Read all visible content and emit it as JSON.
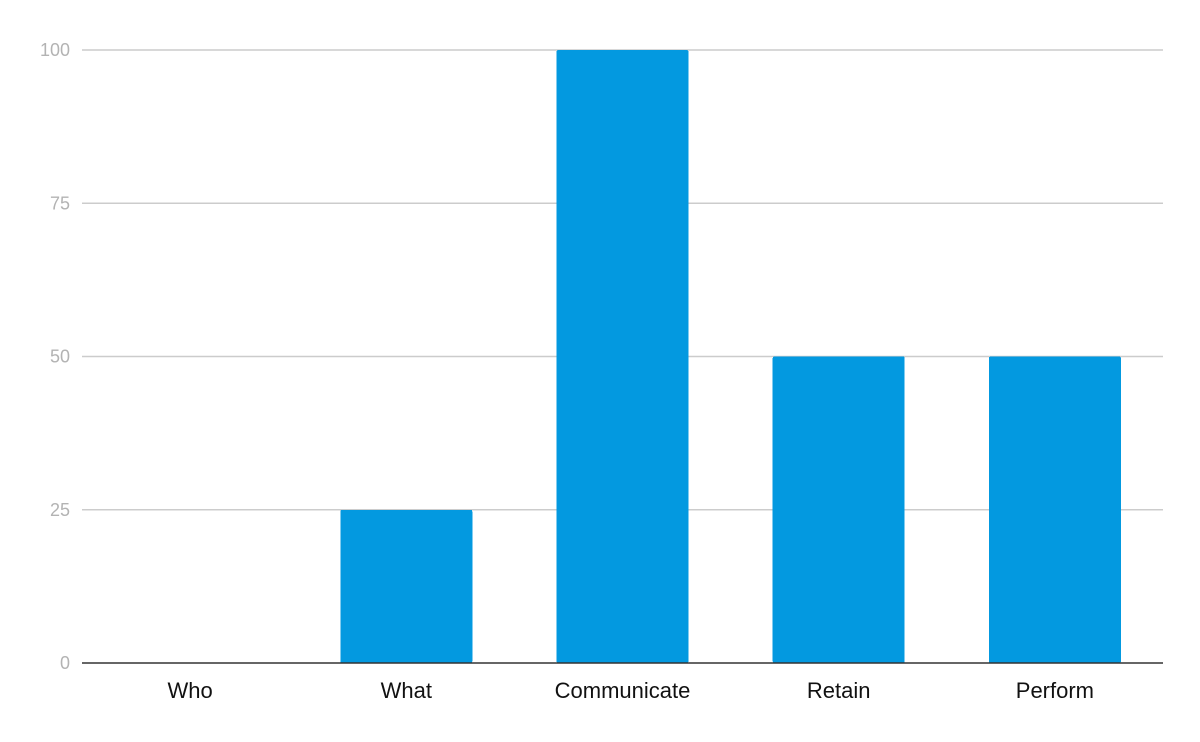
{
  "chart_data": {
    "type": "bar",
    "categories": [
      "Who",
      "What",
      "Communicate",
      "Retain",
      "Perform"
    ],
    "values": [
      0,
      25,
      100,
      50,
      50
    ],
    "title": "",
    "xlabel": "",
    "ylabel": "",
    "ylim": [
      0,
      100
    ],
    "yticks": [
      0,
      25,
      50,
      75,
      100
    ],
    "grid": true,
    "bar_color": "#0399e0"
  }
}
